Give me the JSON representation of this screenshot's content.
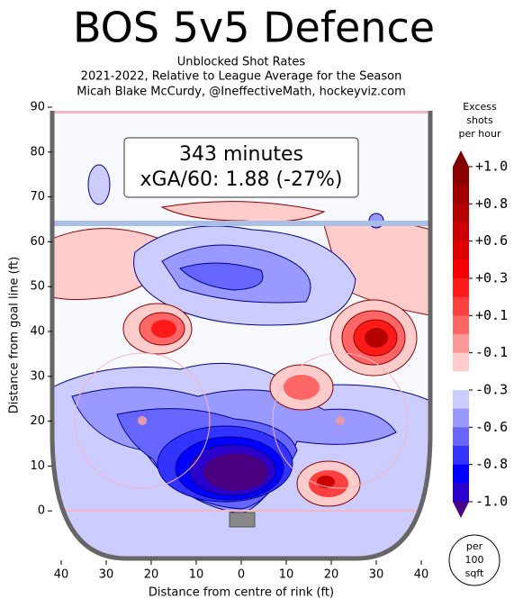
{
  "chart_data": {
    "type": "heatmap",
    "title": "BOS 5v5 Defence",
    "subtitle": [
      "Unblocked Shot Rates",
      "2021-2022, Relative to League Average for the Season",
      "Micah Blake McCurdy, @IneffectiveMath, hockeyviz.com"
    ],
    "annotation": [
      "343 minutes",
      "xGA/60: 1.88 (-27%)"
    ],
    "x_label": "Distance from centre of rink (ft)",
    "y_label": "Distance from goal line (ft)",
    "xlim": [
      -42,
      42
    ],
    "ylim": [
      -11,
      90
    ],
    "xticks": [
      {
        "value": -40,
        "label": "40"
      },
      {
        "value": -30,
        "label": "30"
      },
      {
        "value": -20,
        "label": "20"
      },
      {
        "value": -10,
        "label": "10"
      },
      0,
      10,
      20,
      30,
      40
    ],
    "yticks": [
      0,
      10,
      20,
      30,
      40,
      50,
      60,
      70,
      80,
      90
    ],
    "colorbar": {
      "title": [
        "Excess",
        "shots",
        "per hour"
      ],
      "ticks": [
        {
          "value": 1.0,
          "label": "+1.0"
        },
        {
          "value": 0.8,
          "label": "+0.8"
        },
        {
          "value": 0.6,
          "label": "+0.6"
        },
        {
          "value": 0.3,
          "label": "+0.3"
        },
        {
          "value": 0.1,
          "label": "+0.1"
        },
        {
          "value": -0.1,
          "label": "-0.1"
        },
        {
          "value": -0.3,
          "label": "-0.3"
        },
        {
          "value": -0.6,
          "label": "-0.6"
        },
        {
          "value": -0.8,
          "label": "-0.8"
        },
        {
          "value": -1.0,
          "label": "-1.0"
        }
      ],
      "colors": [
        "#7f0000",
        "#8b0000",
        "#a00000",
        "#b50000",
        "#cc0000",
        "#e00000",
        "#f50000",
        "#ff1a1a",
        "#ff4040",
        "#ff6666",
        "#ff9999",
        "#ffcccc",
        "#ffffff",
        "#ccccff",
        "#9999ff",
        "#6666ff",
        "#3333ff",
        "#0000ff",
        "#2a00cc",
        "#4b0082"
      ]
    },
    "unit_badge": [
      "per",
      "100",
      "sqft"
    ]
  }
}
